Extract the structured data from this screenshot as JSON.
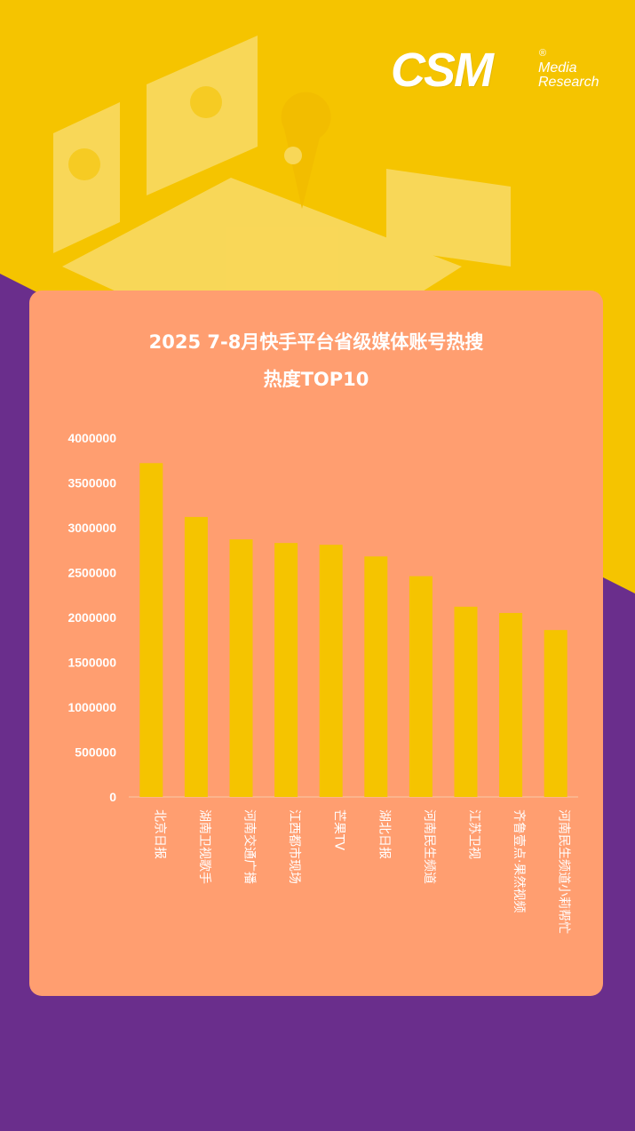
{
  "brand": {
    "logo_text": "CSM",
    "registered": "®",
    "logo_media": "Media",
    "logo_research": "Research"
  },
  "colors": {
    "background_yellow": "#F5C400",
    "background_purple": "#6A2E8C",
    "card": "#FF9E70",
    "bar": "#F5C400",
    "text": "#ffffff"
  },
  "chart_data": {
    "type": "bar",
    "title": "2025 7-8月快手平台省级媒体账号热搜",
    "subtitle": "热度TOP10",
    "categories": [
      "北京日报",
      "湖南卫视歌手",
      "河南交通广播",
      "江西都市现场",
      "芒果TV",
      "湖北日报",
      "河南民生频道",
      "江苏卫视",
      "齐鲁壹点·果然视频",
      "河南民生频道小莉帮忙"
    ],
    "values": [
      3720000,
      3120000,
      2870000,
      2830000,
      2810000,
      2680000,
      2460000,
      2120000,
      2050000,
      1860000
    ],
    "ylim": [
      0,
      4000000
    ],
    "yticks": [
      0,
      500000,
      1000000,
      1500000,
      2000000,
      2500000,
      3000000,
      3500000,
      4000000
    ],
    "xlabel": "",
    "ylabel": "",
    "grid": false,
    "legend": "none"
  }
}
